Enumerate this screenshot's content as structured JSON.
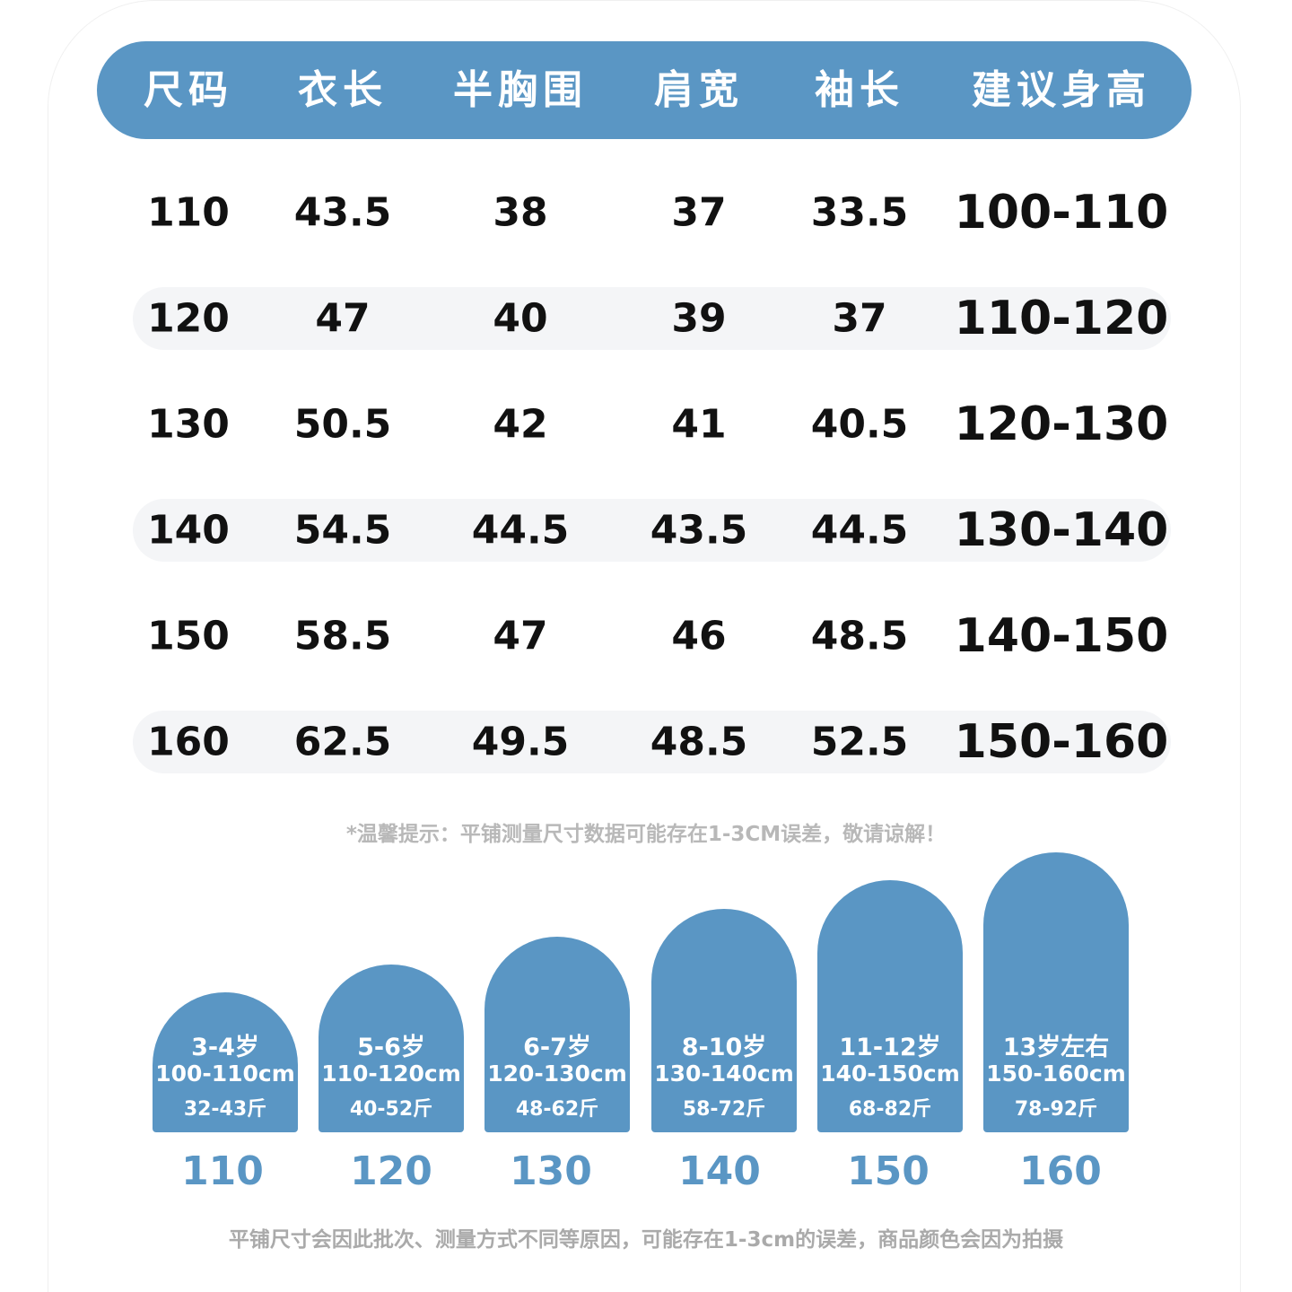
{
  "colors": {
    "accent": "#5a96c4",
    "stripe": "#f4f5f7",
    "note": "#b8b8b8"
  },
  "table": {
    "headers": [
      "尺码",
      "衣长",
      "半胸围",
      "肩宽",
      "袖长",
      "建议身高"
    ],
    "rows": [
      [
        "110",
        "43.5",
        "38",
        "37",
        "33.5",
        "100-110"
      ],
      [
        "120",
        "47",
        "40",
        "39",
        "37",
        "110-120"
      ],
      [
        "130",
        "50.5",
        "42",
        "41",
        "40.5",
        "120-130"
      ],
      [
        "140",
        "54.5",
        "44.5",
        "43.5",
        "44.5",
        "130-140"
      ],
      [
        "150",
        "58.5",
        "47",
        "46",
        "48.5",
        "140-150"
      ],
      [
        "160",
        "62.5",
        "49.5",
        "48.5",
        "52.5",
        "150-160"
      ]
    ]
  },
  "tip": "*温馨提示：平铺测量尺寸数据可能存在1-3CM误差，敬请谅解！",
  "bars": [
    {
      "age": "3-4岁",
      "height": "100-110cm",
      "weight": "32-43斤",
      "size": "110"
    },
    {
      "age": "5-6岁",
      "height": "110-120cm",
      "weight": "40-52斤",
      "size": "120"
    },
    {
      "age": "6-7岁",
      "height": "120-130cm",
      "weight": "48-62斤",
      "size": "130"
    },
    {
      "age": "8-10岁",
      "height": "130-140cm",
      "weight": "58-72斤",
      "size": "140"
    },
    {
      "age": "11-12岁",
      "height": "140-150cm",
      "weight": "68-82斤",
      "size": "150"
    },
    {
      "age": "13岁左右",
      "height": "150-160cm",
      "weight": "78-92斤",
      "size": "160"
    }
  ],
  "footer": "平铺尺寸会因此批次、测量方式不同等原因，可能存在1-3cm的误差，商品颜色会因为拍摄"
}
